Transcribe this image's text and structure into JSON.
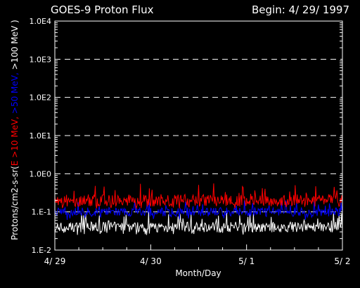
{
  "chart_data": {
    "type": "line",
    "title": "GOES-9 Proton Flux",
    "begin_label": "Begin: 4/ 29/ 1997",
    "xlabel": "Month/Day",
    "ylabel_parts": [
      {
        "text": "Protons/cm2-s-sr(",
        "color": "#ffffff"
      },
      {
        "text": "E >10 MeV, ",
        "color": "#ff0000"
      },
      {
        "text": ">50 MeV, ",
        "color": "#0000ff"
      },
      {
        "text": ">100 MeV )",
        "color": "#ffffff"
      }
    ],
    "x_ticks": [
      {
        "day": 0,
        "label": "4/ 29"
      },
      {
        "day": 1,
        "label": "4/ 30"
      },
      {
        "day": 2,
        "label": "5/ 1"
      },
      {
        "day": 3,
        "label": "5/ 2"
      }
    ],
    "xlim": [
      0,
      3
    ],
    "y_scale": "log",
    "ylim": [
      0.01,
      10000
    ],
    "y_ticks": [
      {
        "value": 10000,
        "label": "1.0E4"
      },
      {
        "value": 1000,
        "label": "1.0E3"
      },
      {
        "value": 100,
        "label": "1.0E2"
      },
      {
        "value": 10,
        "label": "1.0E1"
      },
      {
        "value": 1,
        "label": "1.0E0"
      },
      {
        "value": 0.1,
        "label": "1.E-1"
      },
      {
        "value": 0.01,
        "label": "1.E-2"
      }
    ],
    "gridlines": "dashed horizontal at each decade",
    "series": [
      {
        "name": "E >10 MeV",
        "color": "#ff0000",
        "typical": 0.2,
        "min": 0.12,
        "max": 0.6
      },
      {
        "name": ">50 MeV",
        "color": "#0000ff",
        "typical": 0.1,
        "min": 0.06,
        "max": 0.2
      },
      {
        "name": ">100 MeV",
        "color": "#ffffff",
        "typical": 0.04,
        "min": 0.025,
        "max": 0.1
      }
    ]
  }
}
